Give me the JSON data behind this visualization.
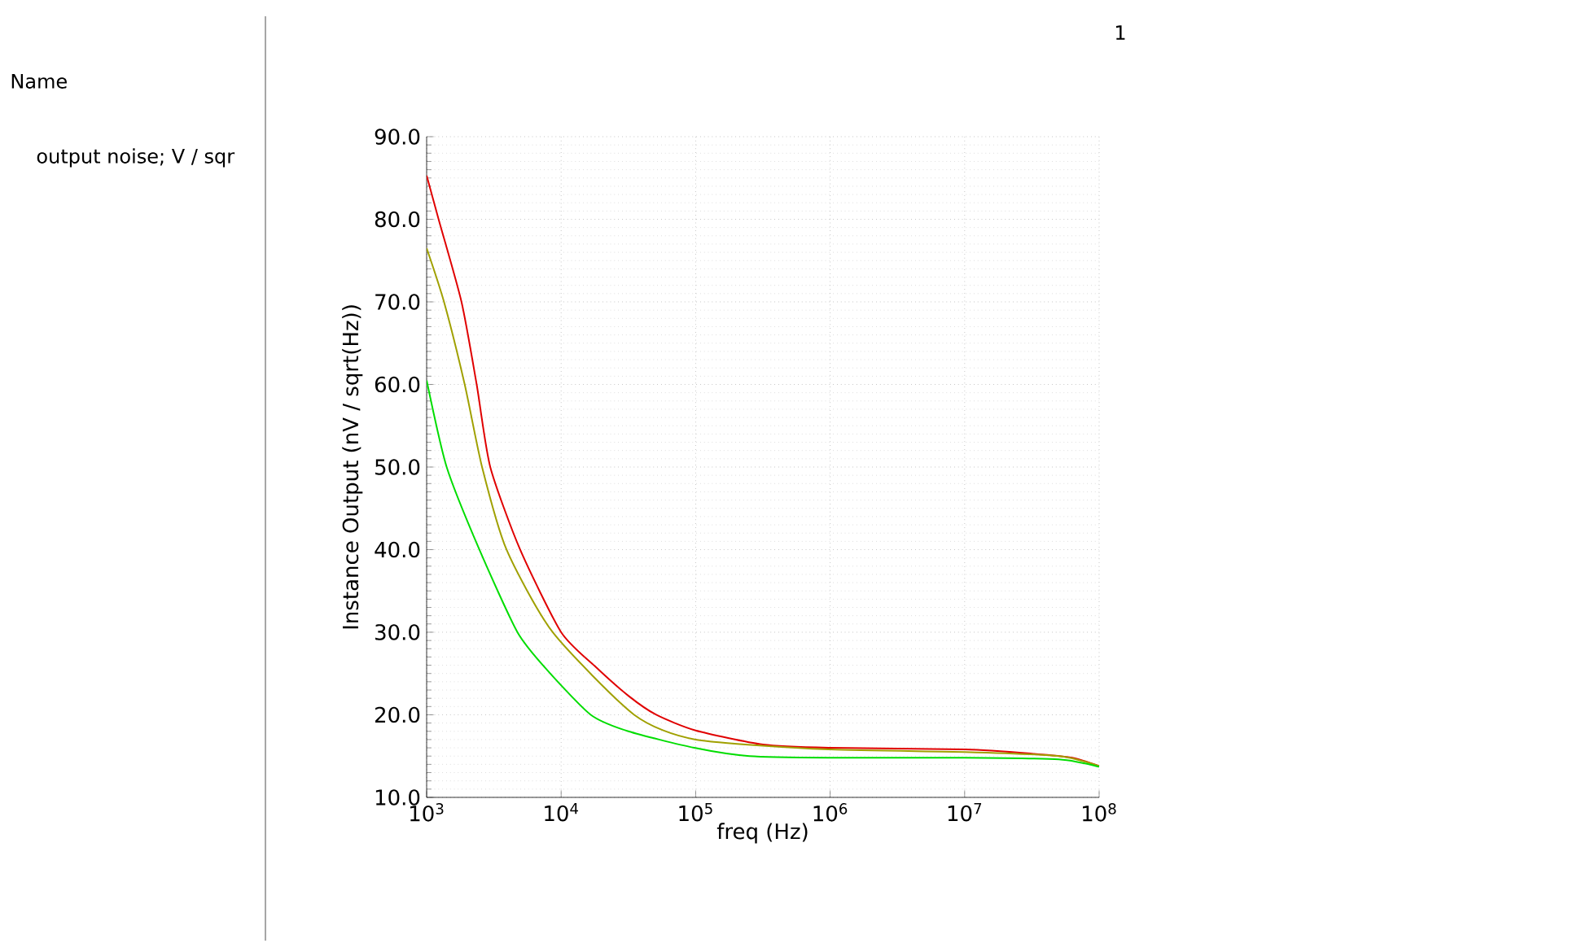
{
  "chart_data": {
    "type": "line",
    "xlabel": "freq (Hz)",
    "ylabel": "Instance Output (nV / sqrt(Hz))",
    "log": "x",
    "grid": true,
    "marker": "none",
    "line_style": "solid",
    "xlim": [
      1000,
      100000000
    ],
    "ylim": [
      10,
      90
    ],
    "xticks": [
      {
        "value": 1000,
        "label": "10$^{3}$"
      },
      {
        "value": 10000,
        "label": "10$^{4}$"
      },
      {
        "value": 100000,
        "label": "10$^{5}$"
      },
      {
        "value": 1000000,
        "label": "10$^{6}$"
      },
      {
        "value": 10000000,
        "label": "10$^{7}$"
      },
      {
        "value": 100000000,
        "label": "10$^{8}$"
      }
    ],
    "yticks": [
      {
        "value": 10,
        "label": "10.0"
      },
      {
        "value": 20,
        "label": "20.0"
      },
      {
        "value": 30,
        "label": "30.0"
      },
      {
        "value": 40,
        "label": "40.0"
      },
      {
        "value": 50,
        "label": "50.0"
      },
      {
        "value": 60,
        "label": "60.0"
      },
      {
        "value": 70,
        "label": "70.0"
      },
      {
        "value": 80,
        "label": "80.0"
      },
      {
        "value": 90,
        "label": "90.0"
      }
    ],
    "series": [
      {
        "color": "#e00000",
        "x": [
          1000,
          1227,
          1816,
          2355,
          2972,
          4955,
          10000,
          17780,
          31620,
          50930,
          100000,
          316200,
          1000000,
          10000000,
          31620000,
          63100000,
          100000000
        ],
        "values": [
          85.3,
          80,
          70,
          60,
          50,
          40,
          30,
          25.9,
          22.3,
          20,
          18.1,
          16.4,
          16,
          15.8,
          15.3,
          14.8,
          13.8
        ]
      },
      {
        "color": "#a0a000",
        "x": [
          1000,
          1346,
          1919,
          2582,
          3926,
          8650,
          34910,
          100000,
          1000000,
          10000000,
          50100000,
          100000000
        ],
        "values": [
          76.5,
          70,
          60,
          50,
          40,
          30,
          20,
          17,
          15.8,
          15.5,
          15.0,
          13.8
        ]
      },
      {
        "color": "#00dd00",
        "x": [
          1000,
          1409,
          2466,
          4732,
          7889,
          16600,
          31620,
          97720,
          251200,
          1000000,
          10000000,
          50100000,
          100000000
        ],
        "values": [
          60.5,
          50,
          40,
          30,
          25.4,
          20,
          18,
          16,
          15,
          14.8,
          14.8,
          14.6,
          13.7
        ]
      }
    ],
    "annotations": [
      "Name",
      "output noise; V / sqr",
      "1"
    ]
  }
}
